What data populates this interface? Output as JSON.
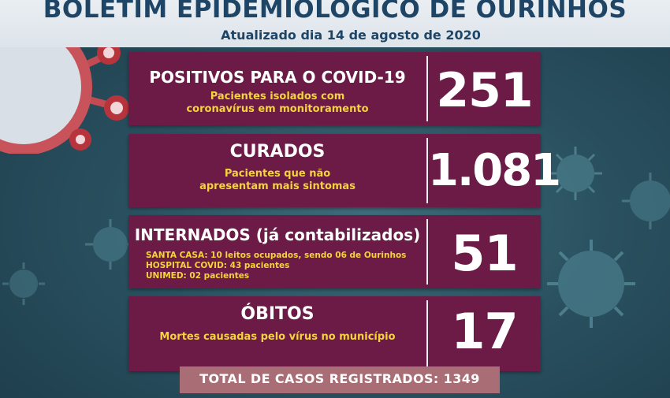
{
  "header": {
    "title": "BOLETIM EPIDEMIOLÓGICO DE OURINHOS",
    "subtitle": "Atualizado dia 14 de agosto de 2020"
  },
  "cards": {
    "positivos": {
      "heading": "POSITIVOS PARA O COVID-19",
      "description_line1": "Pacientes isolados com",
      "description_line2": "coronavírus em monitoramento",
      "value": "251"
    },
    "curados": {
      "heading": "CURADOS",
      "description_line1": "Pacientes que não",
      "description_line2": "apresentam mais sintomas",
      "value": "1.081"
    },
    "internados": {
      "heading": "INTERNADOS (já contabilizados)",
      "details": [
        "SANTA CASA: 10 leitos ocupados, sendo 06 de Ourinhos",
        "HOSPITAL COVID: 43 pacientes",
        "UNIMED: 02 pacientes"
      ],
      "value": "51"
    },
    "obitos": {
      "heading": "ÓBITOS",
      "description_line1": "Mortes causadas pelo vírus no município",
      "value": "17"
    }
  },
  "footer": {
    "total_label": "TOTAL DE CASOS REGISTRADOS: 1349"
  },
  "colors": {
    "card_background": "#6b1b45",
    "accent_yellow": "#f5d33a",
    "title_blue": "#1f4566",
    "total_bar": "#a96e75"
  },
  "icons": [
    "coronavirus-icon"
  ]
}
